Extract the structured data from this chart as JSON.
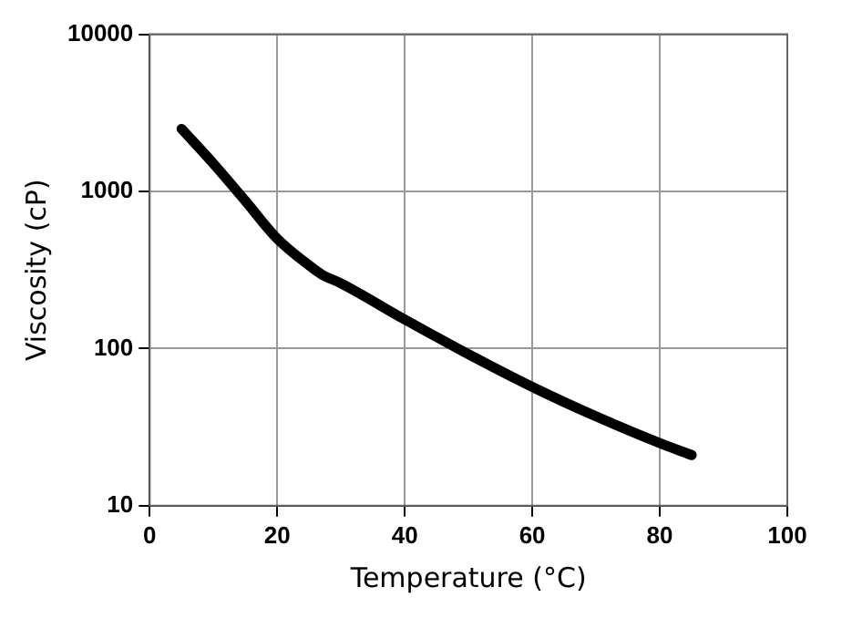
{
  "chart_data": {
    "type": "line",
    "xlabel": "Temperature (°C)",
    "ylabel": "Viscosity (cP)",
    "series": [
      {
        "color": "#000000",
        "x": [
          5,
          10,
          15,
          20,
          25,
          27,
          30,
          40,
          50,
          60,
          70,
          80,
          85
        ],
        "values": [
          2500,
          1500,
          870,
          500,
          338,
          296,
          260,
          153,
          92,
          57,
          37,
          25,
          21
        ]
      }
    ],
    "xlim": [
      0,
      100
    ],
    "xticks": [
      0,
      20,
      40,
      60,
      80,
      100
    ],
    "ylim": [
      10,
      10000
    ],
    "yticks": [
      10,
      100,
      1000,
      10000
    ],
    "log": "y",
    "grid": true,
    "legend": false,
    "marker": "none",
    "line_style": "solid"
  }
}
